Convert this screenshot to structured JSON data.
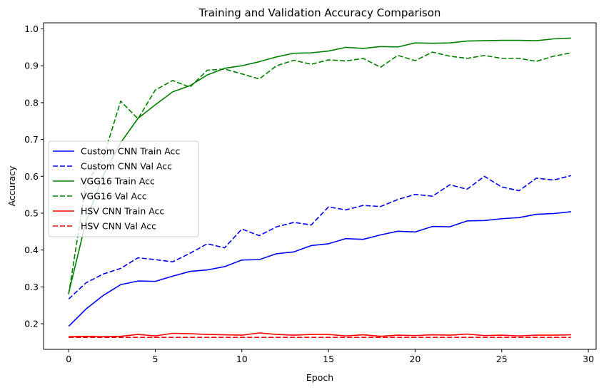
{
  "chart_data": {
    "type": "line",
    "title": "Training and Validation Accuracy Comparison",
    "xlabel": "Epoch",
    "ylabel": "Accuracy",
    "xlim": [
      -1.45,
      30.45
    ],
    "ylim": [
      0.1305,
      1.0165
    ],
    "xticks": [
      0,
      5,
      10,
      15,
      20,
      25,
      30
    ],
    "yticks": [
      0.2,
      0.3,
      0.4,
      0.5,
      0.6,
      0.7,
      0.8,
      0.9,
      1.0
    ],
    "ytick_labels": [
      "0.2",
      "0.3",
      "0.4",
      "0.5",
      "0.6",
      "0.7",
      "0.8",
      "0.9",
      "1.0"
    ],
    "grid": false,
    "legend_position": "center-left",
    "x": [
      0,
      1,
      2,
      3,
      4,
      5,
      6,
      7,
      8,
      9,
      10,
      11,
      12,
      13,
      14,
      15,
      16,
      17,
      18,
      19,
      20,
      21,
      22,
      23,
      24,
      25,
      26,
      27,
      28,
      29
    ],
    "series": [
      {
        "name": "Custom CNN Train Acc",
        "color": "#0000ff",
        "dash": "solid",
        "values": [
          0.193,
          0.24,
          0.277,
          0.306,
          0.316,
          0.315,
          0.329,
          0.342,
          0.346,
          0.355,
          0.373,
          0.374,
          0.39,
          0.395,
          0.412,
          0.417,
          0.431,
          0.429,
          0.441,
          0.451,
          0.449,
          0.464,
          0.463,
          0.479,
          0.48,
          0.485,
          0.488,
          0.497,
          0.499,
          0.504
        ]
      },
      {
        "name": "Custom CNN Val Acc",
        "color": "#0000ff",
        "dash": "dashed",
        "values": [
          0.267,
          0.311,
          0.335,
          0.35,
          0.379,
          0.374,
          0.368,
          0.391,
          0.417,
          0.406,
          0.457,
          0.439,
          0.463,
          0.475,
          0.468,
          0.517,
          0.509,
          0.521,
          0.518,
          0.537,
          0.551,
          0.546,
          0.577,
          0.565,
          0.6,
          0.571,
          0.561,
          0.595,
          0.59,
          0.602
        ]
      },
      {
        "name": "VGG16 Train Acc",
        "color": "#008000",
        "dash": "solid",
        "values": [
          0.283,
          0.478,
          0.603,
          0.691,
          0.757,
          0.794,
          0.829,
          0.846,
          0.875,
          0.893,
          0.9,
          0.911,
          0.924,
          0.934,
          0.935,
          0.94,
          0.95,
          0.947,
          0.952,
          0.951,
          0.962,
          0.961,
          0.962,
          0.967,
          0.968,
          0.969,
          0.969,
          0.968,
          0.973,
          0.975
        ]
      },
      {
        "name": "VGG16 Val Acc",
        "color": "#008000",
        "dash": "dashed",
        "values": [
          0.28,
          0.58,
          0.65,
          0.804,
          0.756,
          0.834,
          0.86,
          0.842,
          0.888,
          0.891,
          0.878,
          0.864,
          0.9,
          0.915,
          0.904,
          0.916,
          0.913,
          0.92,
          0.896,
          0.928,
          0.914,
          0.937,
          0.926,
          0.92,
          0.928,
          0.92,
          0.92,
          0.912,
          0.926,
          0.935
        ]
      },
      {
        "name": "HSV CNN Train Acc",
        "color": "#ff0000",
        "dash": "solid",
        "values": [
          0.165,
          0.166,
          0.165,
          0.166,
          0.171,
          0.167,
          0.174,
          0.173,
          0.171,
          0.17,
          0.169,
          0.175,
          0.171,
          0.169,
          0.171,
          0.171,
          0.167,
          0.17,
          0.166,
          0.169,
          0.168,
          0.17,
          0.169,
          0.172,
          0.168,
          0.169,
          0.167,
          0.169,
          0.169,
          0.17
        ]
      },
      {
        "name": "HSV CNN Val Acc",
        "color": "#ff0000",
        "dash": "dashed",
        "values": [
          0.163,
          0.163,
          0.163,
          0.163,
          0.163,
          0.163,
          0.163,
          0.163,
          0.163,
          0.163,
          0.163,
          0.163,
          0.163,
          0.163,
          0.163,
          0.163,
          0.163,
          0.163,
          0.163,
          0.163,
          0.163,
          0.163,
          0.163,
          0.163,
          0.163,
          0.163,
          0.163,
          0.163,
          0.163,
          0.163
        ]
      }
    ]
  }
}
